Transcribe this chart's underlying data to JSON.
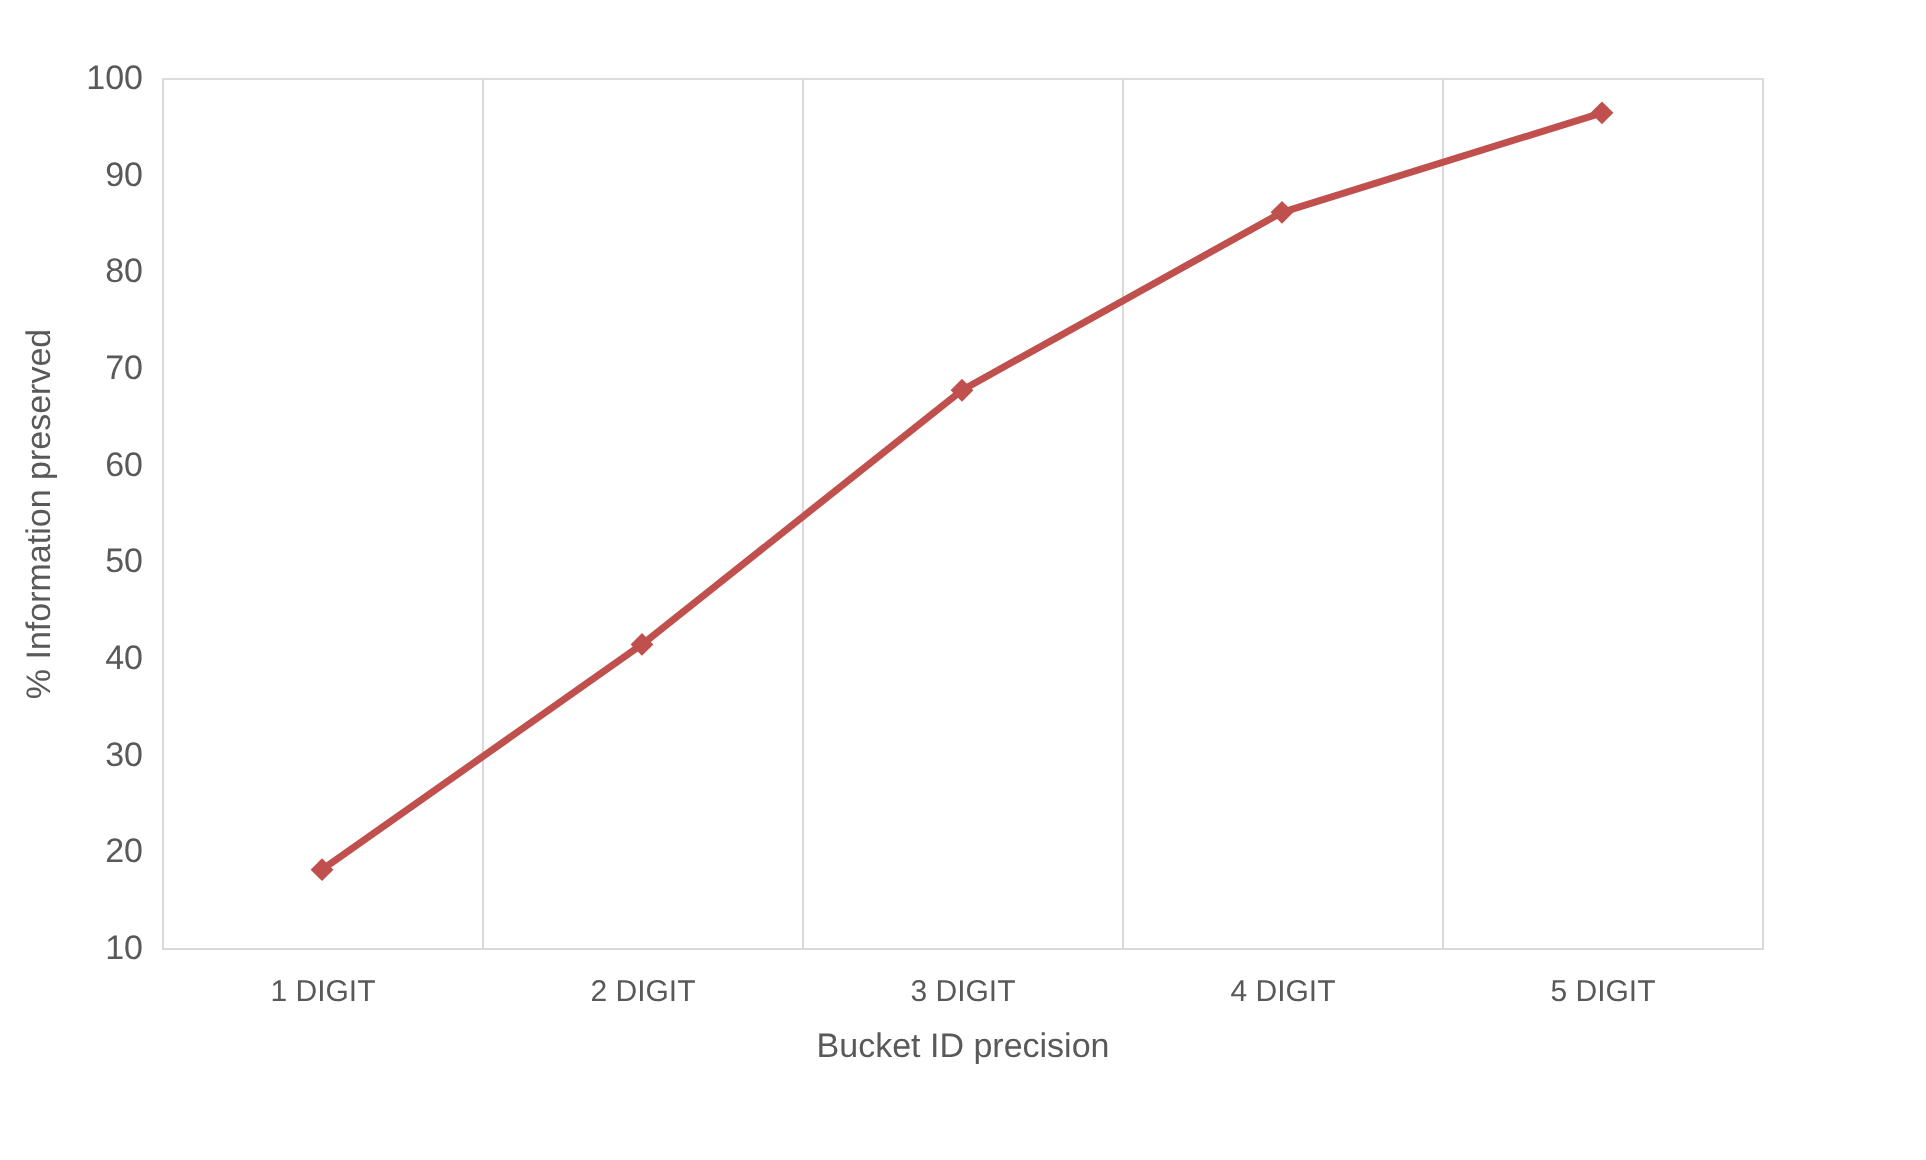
{
  "chart_data": {
    "type": "line",
    "xlabel": "Bucket ID precision",
    "ylabel": "% Information preserved",
    "categories": [
      "1 DIGIT",
      "2 DIGIT",
      "3 DIGIT",
      "4 DIGIT",
      "5 DIGIT"
    ],
    "series": [
      {
        "color": "#c0504d",
        "values": [
          18.1,
          41.4,
          67.7,
          86.1,
          96.4
        ]
      }
    ],
    "ylim": [
      10,
      100
    ],
    "yticks": [
      10,
      20,
      30,
      40,
      50,
      60,
      70,
      80,
      90,
      100
    ],
    "grid": "x",
    "marker": "diamond",
    "line_style": "solid"
  }
}
